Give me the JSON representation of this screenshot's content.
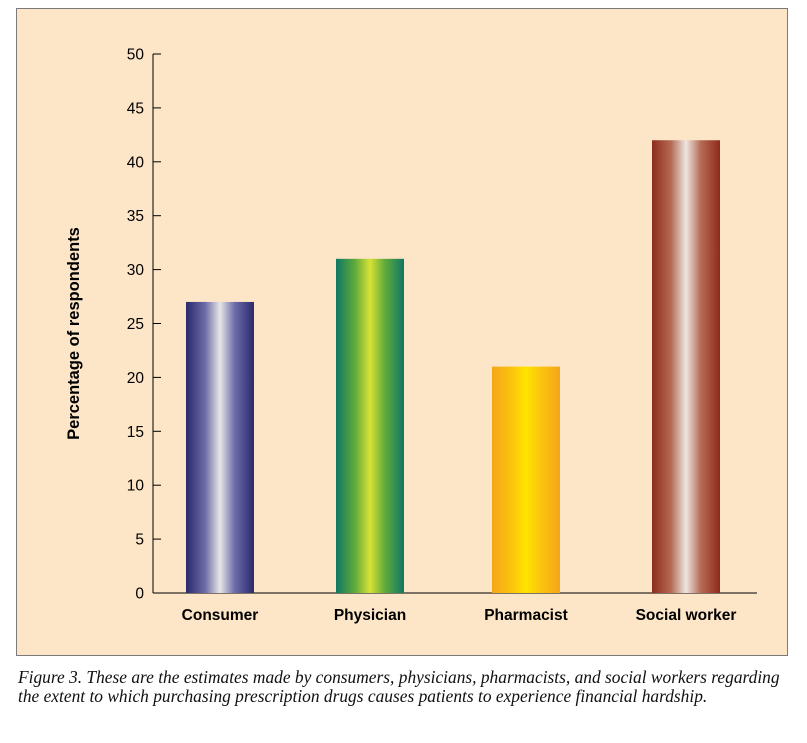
{
  "chart_data": {
    "type": "bar",
    "title": "",
    "xlabel": "",
    "ylabel": "Percentage of respondents",
    "ylim": [
      0,
      50
    ],
    "yticks": [
      0,
      5,
      10,
      15,
      20,
      25,
      30,
      35,
      40,
      45,
      50
    ],
    "categories": [
      "Consumer",
      "Physician",
      "Pharmacist",
      "Social worker"
    ],
    "values": [
      27,
      31,
      21,
      42
    ],
    "bar_colors": [
      {
        "edge": "#2b2a6b",
        "mid": "#6c6aa8",
        "center": "#e6e6e6"
      },
      {
        "edge": "#0f7763",
        "mid": "#5fab3c",
        "center": "#d8e234"
      },
      {
        "edge": "#f5a61a",
        "mid": "#fbc30e",
        "center": "#ffe400"
      },
      {
        "edge": "#8e2b1c",
        "mid": "#b56a54",
        "center": "#ece6e0"
      }
    ],
    "grid": false
  },
  "caption": "Figure 3. These are the estimates made by consumers, physicians, pharmacists, and social workers regarding the extent to which purchasing prescription drugs causes patients to experience financial hardship."
}
